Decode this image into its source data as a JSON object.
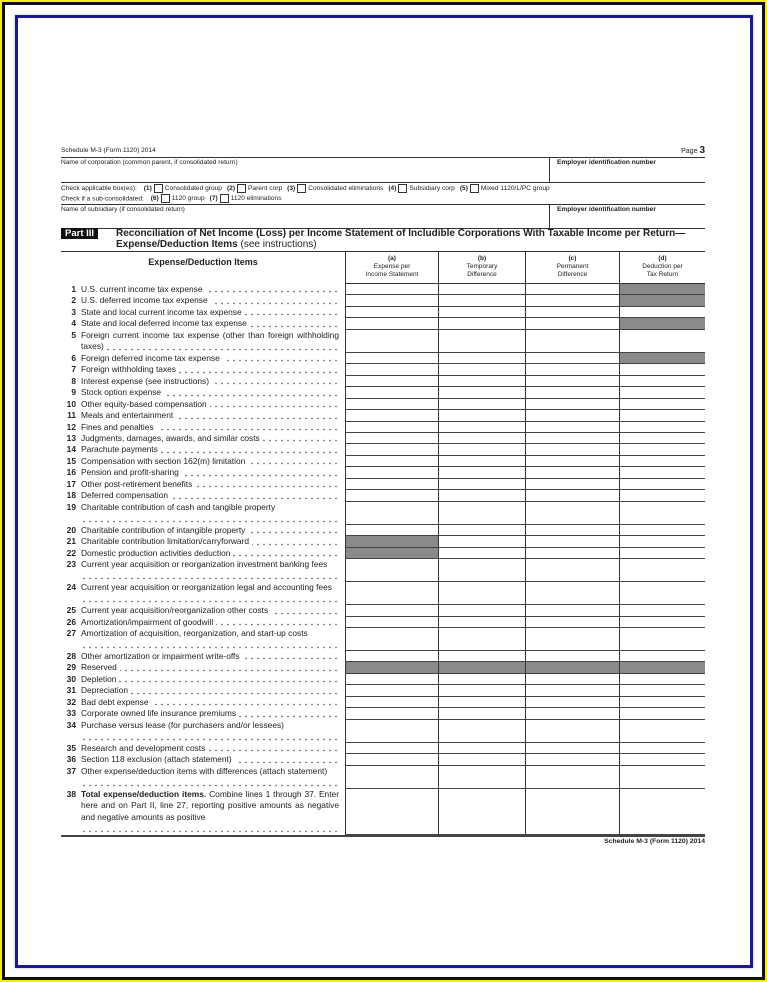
{
  "header": {
    "form_id": "Schedule M-3 (Form 1120) 2014",
    "page_label": "Page",
    "page_number": "3",
    "corp_name_label": "Name of corporation (common parent, if consolidated return)",
    "ein_label": "Employer identification number",
    "check_label": "Check applicable box(es):",
    "checkboxes": [
      {
        "n": "(1)",
        "label": "Consolidated group"
      },
      {
        "n": "(2)",
        "label": "Parent corp"
      },
      {
        "n": "(3)",
        "label": "Consolidated eliminations"
      },
      {
        "n": "(4)",
        "label": "Subsidiary corp"
      },
      {
        "n": "(5)",
        "label": "Mixed 1120/L/PC group"
      }
    ],
    "sub_label": "Check if a sub-consolidated:",
    "sub_checkboxes": [
      {
        "n": "(6)",
        "label": "1120 group"
      },
      {
        "n": "(7)",
        "label": "1120 eliminations"
      }
    ],
    "subsidiary_label": "Name of subsidiary (if consolidated return)",
    "ein_label_2": "Employer identification number"
  },
  "part": {
    "badge": "Part III",
    "title": "Reconciliation of Net Income (Loss) per Income Statement of Includible Corporations With Taxable Income per Return—Expense/Deduction Items",
    "note": "(see instructions)"
  },
  "table": {
    "items_header": "Expense/Deduction Items",
    "columns": [
      {
        "letter": "(a)",
        "line1": "Expense per",
        "line2": "Income Statement"
      },
      {
        "letter": "(b)",
        "line1": "Temporary",
        "line2": "Difference"
      },
      {
        "letter": "(c)",
        "line1": "Permanent",
        "line2": "Difference"
      },
      {
        "letter": "(d)",
        "line1": "Deduction per",
        "line2": "Tax Return"
      }
    ],
    "shade_color": "#8a8a8a",
    "rows": [
      {
        "n": "1",
        "text": "U.S. current income tax expense",
        "lines": 1,
        "shaded": [
          "d"
        ]
      },
      {
        "n": "2",
        "text": "U.S. deferred income tax expense",
        "lines": 1,
        "shaded": [
          "d"
        ]
      },
      {
        "n": "3",
        "text": "State and local current income tax expense",
        "lines": 1,
        "shaded": []
      },
      {
        "n": "4",
        "text": "State and local deferred income tax expense",
        "lines": 1,
        "shaded": [
          "d"
        ]
      },
      {
        "n": "5",
        "text": "Foreign current income tax expense (other than foreign withholding taxes)",
        "lines": 2,
        "shaded": []
      },
      {
        "n": "6",
        "text": "Foreign deferred income tax expense",
        "lines": 1,
        "shaded": [
          "d"
        ]
      },
      {
        "n": "7",
        "text": "Foreign withholding taxes",
        "lines": 1,
        "shaded": []
      },
      {
        "n": "8",
        "text": "Interest expense (see instructions)",
        "lines": 1,
        "shaded": []
      },
      {
        "n": "9",
        "text": "Stock option expense",
        "lines": 1,
        "shaded": []
      },
      {
        "n": "10",
        "text": "Other equity-based compensation",
        "lines": 1,
        "shaded": []
      },
      {
        "n": "11",
        "text": "Meals and entertainment",
        "lines": 1,
        "shaded": []
      },
      {
        "n": "12",
        "text": "Fines and penalties",
        "lines": 1,
        "shaded": []
      },
      {
        "n": "13",
        "text": "Judgments, damages, awards, and similar costs",
        "lines": 1,
        "shaded": []
      },
      {
        "n": "14",
        "text": "Parachute payments",
        "lines": 1,
        "shaded": []
      },
      {
        "n": "15",
        "text": "Compensation with section 162(m) limitation",
        "lines": 1,
        "shaded": []
      },
      {
        "n": "16",
        "text": "Pension and profit-sharing",
        "lines": 1,
        "shaded": []
      },
      {
        "n": "17",
        "text": "Other post-retirement benefits",
        "lines": 1,
        "shaded": []
      },
      {
        "n": "18",
        "text": "Deferred compensation",
        "lines": 1,
        "shaded": []
      },
      {
        "n": "19",
        "text": "Charitable contribution of cash and tangible property",
        "lines": 2,
        "shaded": []
      },
      {
        "n": "20",
        "text": "Charitable contribution of intangible property",
        "lines": 1,
        "shaded": []
      },
      {
        "n": "21",
        "text": "Charitable contribution limitation/carryforward",
        "lines": 1,
        "shaded": [
          "a"
        ]
      },
      {
        "n": "22",
        "text": "Domestic production activities deduction",
        "lines": 1,
        "shaded": [
          "a"
        ]
      },
      {
        "n": "23",
        "text": "Current year acquisition or reorganization investment banking fees",
        "lines": 2,
        "shaded": []
      },
      {
        "n": "24",
        "text": "Current year acquisition or reorganization legal and accounting fees",
        "lines": 2,
        "shaded": []
      },
      {
        "n": "25",
        "text": "Current year acquisition/reorganization other costs",
        "lines": 1,
        "shaded": []
      },
      {
        "n": "26",
        "text": "Amortization/impairment of goodwill",
        "lines": 1,
        "shaded": []
      },
      {
        "n": "27",
        "text": "Amortization of acquisition, reorganization, and start-up costs",
        "lines": 2,
        "shaded": []
      },
      {
        "n": "28",
        "text": "Other amortization or impairment write-offs",
        "lines": 1,
        "shaded": []
      },
      {
        "n": "29",
        "text": "Reserved",
        "lines": 1,
        "shaded": [
          "a",
          "b",
          "c",
          "d"
        ]
      },
      {
        "n": "30",
        "text": "Depletion",
        "lines": 1,
        "shaded": []
      },
      {
        "n": "31",
        "text": "Depreciation",
        "lines": 1,
        "shaded": []
      },
      {
        "n": "32",
        "text": "Bad debt expense",
        "lines": 1,
        "shaded": []
      },
      {
        "n": "33",
        "text": "Corporate owned life insurance premiums",
        "lines": 1,
        "shaded": []
      },
      {
        "n": "34",
        "text": "Purchase versus lease (for purchasers and/or lessees)",
        "lines": 2,
        "shaded": []
      },
      {
        "n": "35",
        "text": "Research and development costs",
        "lines": 1,
        "shaded": []
      },
      {
        "n": "36",
        "text": "Section 118 exclusion (attach statement)",
        "lines": 1,
        "shaded": []
      },
      {
        "n": "37",
        "text": "Other expense/deduction items with differences (attach statement)",
        "lines": 2,
        "shaded": []
      },
      {
        "n": "38",
        "bold_text": "Total expense/deduction items.",
        "text": "Combine lines 1 through 37. Enter here and on Part II, line 27, reporting positive amounts as negative and negative amounts as positive",
        "lines": 4,
        "shaded": []
      }
    ]
  },
  "footer": {
    "form_id": "Schedule M-3 (Form 1120) 2014"
  }
}
